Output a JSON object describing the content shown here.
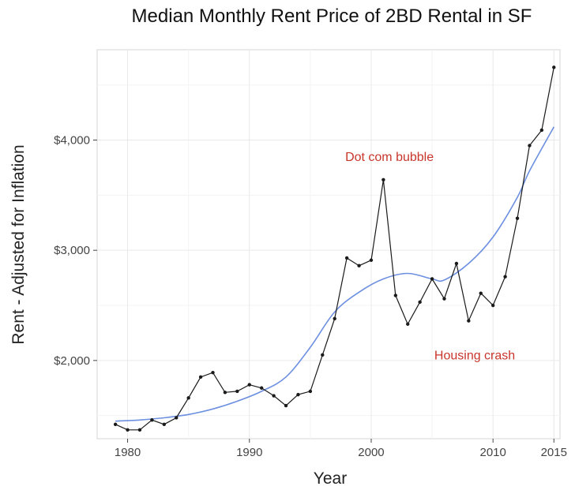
{
  "chart_data": {
    "type": "line",
    "title": "Median Monthly Rent Price of 2BD Rental in SF",
    "xlabel": "Year",
    "ylabel": "Rent - Adjusted for Inflation",
    "xlim": [
      1977.5,
      2015.5
    ],
    "ylim": [
      1290,
      4820
    ],
    "x_ticks": [
      1980,
      1990,
      2000,
      2010,
      2015
    ],
    "x_tick_labels": [
      "1980",
      "1990",
      "2000",
      "2010",
      "2015"
    ],
    "y_ticks": [
      2000,
      3000,
      4000
    ],
    "y_tick_labels": [
      "$2,000",
      "$3,000",
      "$4,000"
    ],
    "grid": true,
    "series": [
      {
        "color": "#1a1a1a",
        "x": [
          1979,
          1980,
          1981,
          1982,
          1983,
          1984,
          1985,
          1986,
          1987,
          1988,
          1989,
          1990,
          1991,
          1992,
          1993,
          1994,
          1995,
          1996,
          1997,
          1998,
          1999,
          2000,
          2001,
          2002,
          2003,
          2004,
          2005,
          2006,
          2007,
          2008,
          2009,
          2010,
          2011,
          2012,
          2013,
          2014,
          2015
        ],
        "y": [
          1420,
          1370,
          1370,
          1460,
          1420,
          1480,
          1660,
          1850,
          1890,
          1710,
          1720,
          1780,
          1750,
          1680,
          1590,
          1690,
          1720,
          2050,
          2380,
          2930,
          2860,
          2910,
          3640,
          2590,
          2330,
          2530,
          2740,
          2560,
          2880,
          2360,
          2610,
          2500,
          2760,
          3290,
          3950,
          4090,
          4660
        ]
      },
      {
        "color": "#6c8fe0",
        "x": [
          1979,
          1981,
          1983,
          1985,
          1987,
          1989,
          1991,
          1993,
          1995,
          1997,
          1999,
          2001,
          2003,
          2005,
          2006,
          2008,
          2010,
          2012,
          2013,
          2015
        ],
        "y": [
          1450,
          1460,
          1480,
          1510,
          1560,
          1630,
          1720,
          1850,
          2120,
          2440,
          2620,
          2740,
          2790,
          2740,
          2730,
          2880,
          3120,
          3480,
          3720,
          4120
        ]
      }
    ],
    "annotations": [
      {
        "text": "Dot com bubble",
        "x": 2001.5,
        "y": 3810,
        "color": "#c8362b"
      },
      {
        "text": "Housing crash",
        "x": 2008.5,
        "y": 2010,
        "color": "#c8362b"
      }
    ]
  }
}
